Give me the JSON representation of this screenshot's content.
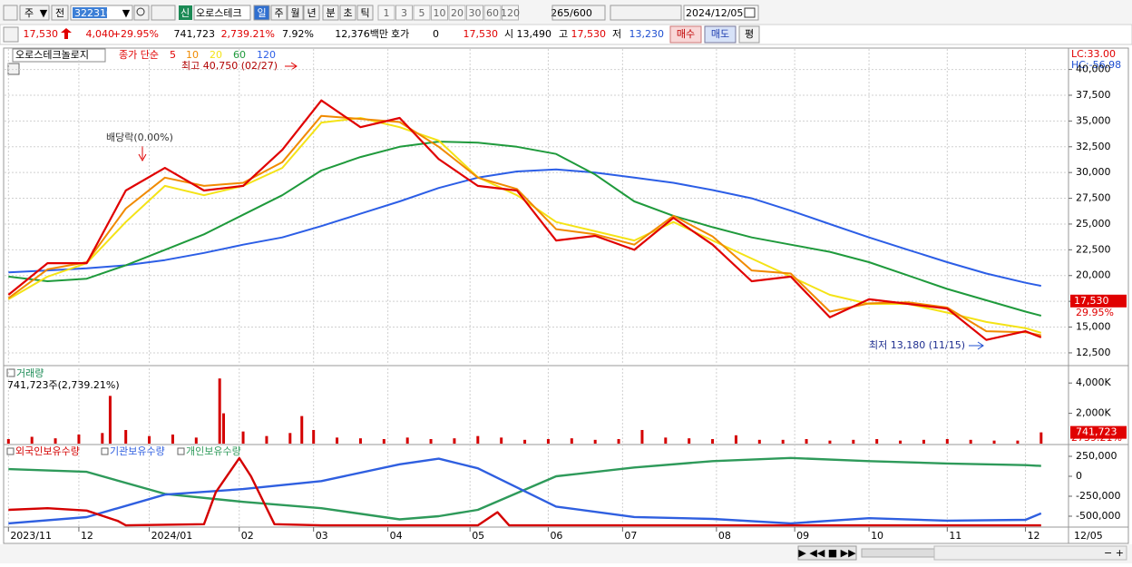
{
  "toolbar": {
    "market": "주",
    "prev": "전",
    "code": "322310",
    "new_badge": "신",
    "name": "오로스테크",
    "periods": [
      "일",
      "주",
      "월",
      "년",
      "분",
      "초",
      "틱"
    ],
    "minutes": [
      "1",
      "3",
      "5",
      "10",
      "20",
      "30",
      "60",
      "120"
    ],
    "count": "265/600",
    "date": "2024/12/05"
  },
  "quote": {
    "price": "17,530",
    "change": "4,040",
    "change_pct": "+29.95%",
    "volume": "741,723",
    "volume_pct": "2,739.21%",
    "turnover": "7.92%",
    "amount": "12,376백만",
    "hoga_label": "호가",
    "hoga": "0",
    "ask": "17,530",
    "open_label": "시",
    "open": "13,490",
    "high_label": "고",
    "high": "17,530",
    "low_label": "저",
    "low": "13,230",
    "buy": "매수",
    "sell": "매도",
    "avg": "평"
  },
  "price_panel": {
    "stock": "오로스테크놀로지",
    "indicator": "종가 단순",
    "ylim": [
      11350,
      41900
    ],
    "yticks": [
      {
        "value": 12500,
        "label": "12,500"
      },
      {
        "value": 15000,
        "label": "15,000"
      },
      {
        "value": 17500,
        "label": "17,500"
      },
      {
        "value": 20000,
        "label": "20,000"
      },
      {
        "value": 22500,
        "label": "22,500"
      },
      {
        "value": 25000,
        "label": "25,000"
      },
      {
        "value": 27500,
        "label": "27,500"
      },
      {
        "value": 30000,
        "label": "30,000"
      },
      {
        "value": 32500,
        "label": "32,500"
      },
      {
        "value": 35000,
        "label": "35,000"
      },
      {
        "value": 37500,
        "label": "37,500"
      },
      {
        "value": 40000,
        "label": "40,000"
      }
    ],
    "x": [
      0,
      10,
      20,
      30,
      40,
      50,
      60,
      70,
      80,
      90,
      100,
      110,
      120,
      130,
      140,
      150,
      160,
      170,
      180,
      190,
      200,
      210,
      220,
      230,
      240,
      250,
      260,
      264
    ],
    "series": [
      {
        "name": "5",
        "color": "#e00000",
        "values": [
          18130,
          21200,
          21200,
          28250,
          30450,
          28250,
          28700,
          32200,
          37000,
          34400,
          35300,
          31300,
          28700,
          28250,
          23400,
          23850,
          22500,
          25600,
          23000,
          19450,
          19900,
          15950,
          17700,
          17250,
          16800,
          13750,
          14600,
          14000
        ]
      },
      {
        "name": "10",
        "color": "#f08a00",
        "values": [
          17800,
          20600,
          21300,
          26500,
          29500,
          28700,
          29000,
          31000,
          35500,
          35200,
          34900,
          32500,
          29500,
          28400,
          24500,
          24000,
          23000,
          25800,
          23800,
          20500,
          20200,
          16500,
          17300,
          17400,
          16900,
          14600,
          14500,
          14200
        ]
      },
      {
        "name": "20",
        "color": "#f4e316",
        "values": [
          17700,
          19900,
          21200,
          25200,
          28700,
          27800,
          28700,
          30450,
          34850,
          35300,
          34400,
          33100,
          29550,
          27800,
          25200,
          24300,
          23400,
          25200,
          23400,
          21650,
          19900,
          18130,
          17250,
          17250,
          16400,
          15500,
          14900,
          14450
        ]
      },
      {
        "name": "60",
        "color": "#1f9a3c",
        "values": [
          19900,
          19450,
          19700,
          21000,
          22500,
          24000,
          25900,
          27800,
          30200,
          31500,
          32500,
          33000,
          32900,
          32500,
          31800,
          29800,
          27200,
          25800,
          24700,
          23700,
          23000,
          22300,
          21300,
          20000,
          18700,
          17600,
          16500,
          16100
        ]
      },
      {
        "name": "120",
        "color": "#2c5ee6",
        "values": [
          20300,
          20500,
          20700,
          21000,
          21500,
          22200,
          23000,
          23700,
          24800,
          26000,
          27200,
          28500,
          29500,
          30100,
          30300,
          30000,
          29500,
          29000,
          28300,
          27500,
          26300,
          25000,
          23700,
          22500,
          21300,
          20200,
          19300,
          19000
        ]
      }
    ],
    "high_note": "최고 40,750 (02/27)",
    "dividend_note": "배당락(0.00%)",
    "low_note": "최저 13,180 (11/15)",
    "lc": "LC:33.00",
    "hc": "HC:-56.98",
    "current": {
      "value": 17530,
      "label": "17,530"
    },
    "current_pct": "29.95%"
  },
  "volume_panel": {
    "title": "거래량",
    "summary": "741,723주(2,739.21%)",
    "ylim": [
      0,
      4970000
    ],
    "yticks": [
      {
        "value": 2000000,
        "label": "2,000K"
      },
      {
        "value": 4000000,
        "label": "4,000K"
      }
    ],
    "x": [
      0,
      6,
      12,
      18,
      24,
      26,
      30,
      36,
      42,
      48,
      54,
      55,
      60,
      66,
      72,
      75,
      78,
      84,
      90,
      96,
      102,
      108,
      114,
      120,
      126,
      132,
      138,
      144,
      150,
      156,
      162,
      168,
      174,
      180,
      186,
      192,
      198,
      204,
      210,
      216,
      222,
      228,
      234,
      240,
      246,
      252,
      258,
      264
    ],
    "values": [
      300000,
      450000,
      350000,
      600000,
      700000,
      3150000,
      900000,
      500000,
      600000,
      400000,
      4300000,
      2000000,
      800000,
      500000,
      700000,
      1820000,
      900000,
      400000,
      350000,
      300000,
      400000,
      300000,
      350000,
      500000,
      400000,
      250000,
      300000,
      350000,
      250000,
      300000,
      900000,
      400000,
      350000,
      300000,
      550000,
      250000,
      250000,
      300000,
      200000,
      250000,
      300000,
      200000,
      250000,
      300000,
      250000,
      200000,
      200000,
      741723
    ],
    "color": "#d40000",
    "last": {
      "value": 741723,
      "label": "741,723"
    },
    "last_pct": "2739.21%"
  },
  "holding_panel": {
    "ylim": [
      -625000,
      375000
    ],
    "yticks": [
      {
        "value": 250000,
        "label": "250,000"
      },
      0,
      {
        "value": -250000,
        "label": "-250,000"
      },
      {
        "value": -500000,
        "label": "-500,000"
      }
    ],
    "series": [
      {
        "name": "외국인보유수량",
        "color": "#d40000",
        "x": [
          0,
          10,
          20,
          28,
          30,
          50,
          53,
          59,
          62,
          68,
          80,
          120,
          125,
          128,
          264
        ],
        "values": [
          -420000,
          -400000,
          -430000,
          -560000,
          -615000,
          -600000,
          -200000,
          227000,
          0,
          -600000,
          -615000,
          -615000,
          -450000,
          -615000,
          -615000
        ]
      },
      {
        "name": "기관보유수량",
        "color": "#2f5fe0",
        "x": [
          0,
          20,
          40,
          60,
          80,
          100,
          110,
          120,
          140,
          160,
          180,
          200,
          220,
          240,
          260,
          264
        ],
        "values": [
          -590000,
          -511000,
          -230000,
          -160000,
          -60000,
          150000,
          220000,
          100000,
          -380000,
          -510000,
          -534000,
          -590000,
          -525000,
          -556000,
          -545000,
          -465000
        ]
      },
      {
        "name": "개인보유수량",
        "color": "#2e9a5a",
        "x": [
          0,
          20,
          40,
          60,
          80,
          100,
          110,
          120,
          140,
          160,
          180,
          200,
          220,
          240,
          260,
          264
        ],
        "values": [
          90000,
          56000,
          -220000,
          -320000,
          -400000,
          -540000,
          -500000,
          -420000,
          0,
          110000,
          190000,
          230000,
          190000,
          160000,
          140000,
          130000
        ]
      }
    ]
  },
  "x_axis": {
    "xlim": [
      -1,
      271
    ],
    "xticks": [
      {
        "value": 0,
        "label": "2023/11"
      },
      {
        "value": 18,
        "label": "12"
      },
      {
        "value": 36,
        "label": "2024/01"
      },
      {
        "value": 59,
        "label": "02"
      },
      {
        "value": 78,
        "label": "03"
      },
      {
        "value": 97,
        "label": "04"
      },
      {
        "value": 118,
        "label": "05"
      },
      {
        "value": 138,
        "label": "06"
      },
      {
        "value": 157,
        "label": "07"
      },
      {
        "value": 181,
        "label": "08"
      },
      {
        "value": 201,
        "label": "09"
      },
      {
        "value": 220,
        "label": "10"
      },
      {
        "value": 240,
        "label": "11"
      },
      {
        "value": 260,
        "label": "12"
      }
    ],
    "end_label": "12/05"
  }
}
